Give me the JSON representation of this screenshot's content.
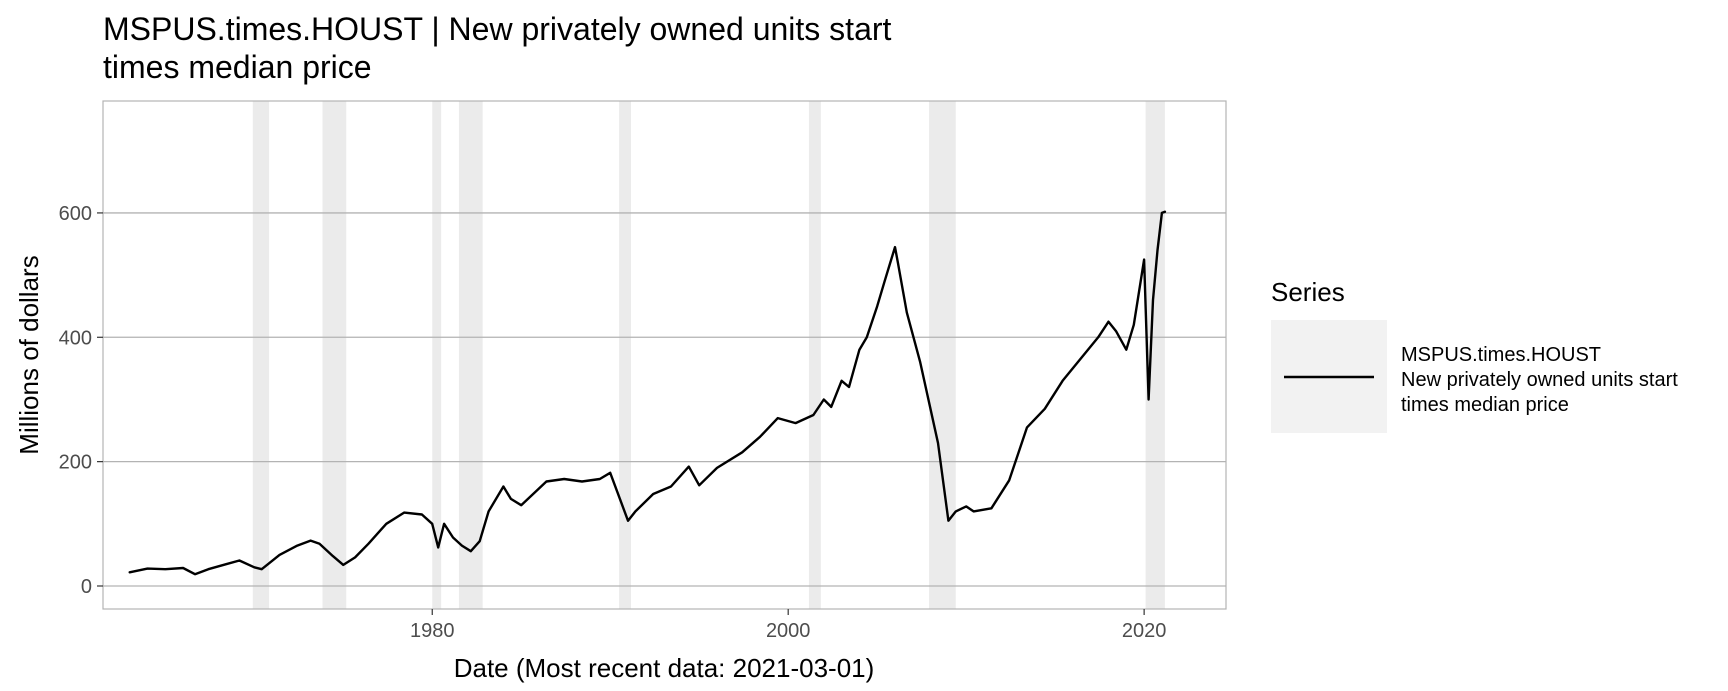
{
  "chart_data": {
    "type": "line",
    "title_lines": [
      "MSPUS.times.HOUST | New privately owned units start",
      "times median price"
    ],
    "xlabel": "Date (Most recent data: 2021-03-01)",
    "ylabel": "Millions of dollars",
    "x_range_years": [
      1961.5,
      2024.6
    ],
    "ylim": [
      -37,
      780
    ],
    "x_ticks": [
      {
        "value": 1980,
        "label": "1980"
      },
      {
        "value": 2000,
        "label": "2000"
      },
      {
        "value": 2020,
        "label": "2020"
      }
    ],
    "y_ticks": [
      {
        "value": 0,
        "label": "0"
      },
      {
        "value": 200,
        "label": "200"
      },
      {
        "value": 400,
        "label": "400"
      },
      {
        "value": 600,
        "label": "600"
      }
    ],
    "grid": "horizontal major lines",
    "legend": {
      "title": "Series",
      "placement": "right",
      "entry_lines": [
        "MSPUS.times.HOUST",
        "New privately owned units start",
        "times median price"
      ]
    },
    "recession_shading": [
      {
        "start": "1969-12",
        "end": "1970-11"
      },
      {
        "start": "1973-11",
        "end": "1975-03"
      },
      {
        "start": "1980-01",
        "end": "1980-07"
      },
      {
        "start": "1981-07",
        "end": "1982-11"
      },
      {
        "start": "1990-07",
        "end": "1991-03"
      },
      {
        "start": "2001-03",
        "end": "2001-11"
      },
      {
        "start": "2007-12",
        "end": "2009-06"
      },
      {
        "start": "2020-02",
        "end": "2021-03"
      }
    ],
    "series": [
      {
        "name": "MSPUS.times.HOUST",
        "points": [
          [
            "1963-01",
            22
          ],
          [
            "1964-01",
            28
          ],
          [
            "1965-01",
            27
          ],
          [
            "1966-01",
            29
          ],
          [
            "1966-09",
            19
          ],
          [
            "1967-06",
            27
          ],
          [
            "1968-06",
            35
          ],
          [
            "1969-03",
            41
          ],
          [
            "1970-01",
            30
          ],
          [
            "1970-06",
            27
          ],
          [
            "1971-06",
            50
          ],
          [
            "1972-06",
            65
          ],
          [
            "1973-03",
            73
          ],
          [
            "1973-09",
            68
          ],
          [
            "1974-06",
            48
          ],
          [
            "1975-01",
            34
          ],
          [
            "1975-09",
            46
          ],
          [
            "1976-06",
            68
          ],
          [
            "1977-06",
            100
          ],
          [
            "1978-06",
            118
          ],
          [
            "1979-06",
            115
          ],
          [
            "1980-01",
            100
          ],
          [
            "1980-05",
            62
          ],
          [
            "1980-09",
            100
          ],
          [
            "1981-03",
            78
          ],
          [
            "1981-09",
            65
          ],
          [
            "1982-03",
            56
          ],
          [
            "1982-09",
            72
          ],
          [
            "1983-03",
            120
          ],
          [
            "1984-01",
            160
          ],
          [
            "1984-06",
            140
          ],
          [
            "1985-01",
            130
          ],
          [
            "1986-06",
            168
          ],
          [
            "1987-06",
            172
          ],
          [
            "1988-06",
            168
          ],
          [
            "1989-06",
            172
          ],
          [
            "1990-01",
            182
          ],
          [
            "1990-06",
            150
          ],
          [
            "1991-01",
            105
          ],
          [
            "1991-06",
            120
          ],
          [
            "1992-06",
            148
          ],
          [
            "1993-06",
            160
          ],
          [
            "1994-06",
            192
          ],
          [
            "1995-01",
            162
          ],
          [
            "1996-01",
            190
          ],
          [
            "1997-06",
            215
          ],
          [
            "1998-06",
            240
          ],
          [
            "1999-06",
            270
          ],
          [
            "2000-06",
            262
          ],
          [
            "2001-06",
            275
          ],
          [
            "2002-01",
            300
          ],
          [
            "2002-06",
            288
          ],
          [
            "2003-01",
            330
          ],
          [
            "2003-06",
            320
          ],
          [
            "2004-01",
            380
          ],
          [
            "2004-06",
            400
          ],
          [
            "2005-01",
            450
          ],
          [
            "2005-06",
            490
          ],
          [
            "2006-01",
            545
          ],
          [
            "2006-03",
            520
          ],
          [
            "2006-09",
            440
          ],
          [
            "2007-06",
            360
          ],
          [
            "2008-06",
            230
          ],
          [
            "2009-01",
            105
          ],
          [
            "2009-06",
            120
          ],
          [
            "2010-01",
            128
          ],
          [
            "2010-06",
            120
          ],
          [
            "2011-06",
            125
          ],
          [
            "2012-06",
            170
          ],
          [
            "2013-06",
            255
          ],
          [
            "2014-06",
            285
          ],
          [
            "2015-06",
            330
          ],
          [
            "2016-06",
            365
          ],
          [
            "2017-06",
            400
          ],
          [
            "2018-01",
            425
          ],
          [
            "2018-06",
            410
          ],
          [
            "2019-01",
            380
          ],
          [
            "2019-06",
            420
          ],
          [
            "2020-01",
            525
          ],
          [
            "2020-04",
            300
          ],
          [
            "2020-07",
            460
          ],
          [
            "2020-10",
            540
          ],
          [
            "2021-01",
            600
          ],
          [
            "2021-03",
            602
          ]
        ]
      }
    ]
  }
}
